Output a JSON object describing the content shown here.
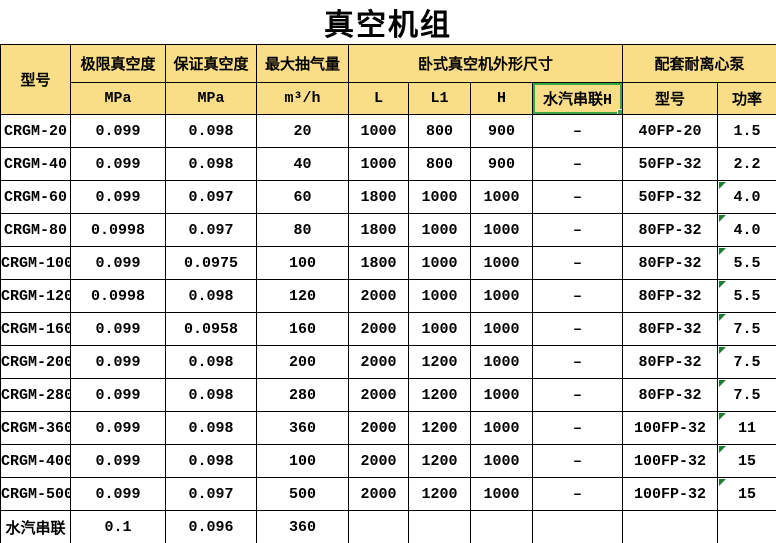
{
  "title": "真空机组",
  "colors": {
    "header_bg": "#FADD87",
    "selection_green": "#3DA447",
    "triangle_green": "#1E7D34",
    "grid_line": "#000000"
  },
  "header": {
    "model": "型号",
    "ultimate_vacuum": "极限真空度",
    "guaranteed_vacuum": "保证真空度",
    "max_pumping": "最大抽气量",
    "dimensions_group": "卧式真空机外形尺寸",
    "pump_group": "配套耐离心泵",
    "unit_mpa_1": "MPa",
    "unit_mpa_2": "MPa",
    "unit_m3h": "m³/h",
    "dim_l": "L",
    "dim_l1": "L1",
    "dim_h": "H",
    "dim_series_h": "水汽串联H",
    "pump_model": "型号",
    "pump_power": "功率"
  },
  "selected_header_cell": "水汽串联H",
  "rows": [
    {
      "model": "CRGM-20",
      "ultimate": "0.099",
      "guaranteed": "0.098",
      "capacity": "20",
      "L": "1000",
      "L1": "800",
      "H": "900",
      "series_h": "–",
      "pump": "40FP-20",
      "power": "1.5",
      "flag": false
    },
    {
      "model": "CRGM-40",
      "ultimate": "0.099",
      "guaranteed": "0.098",
      "capacity": "40",
      "L": "1000",
      "L1": "800",
      "H": "900",
      "series_h": "–",
      "pump": "50FP-32",
      "power": "2.2",
      "flag": false
    },
    {
      "model": "CRGM-60",
      "ultimate": "0.099",
      "guaranteed": "0.097",
      "capacity": "60",
      "L": "1800",
      "L1": "1000",
      "H": "1000",
      "series_h": "–",
      "pump": "50FP-32",
      "power": "4.0",
      "flag": true
    },
    {
      "model": "CRGM-80",
      "ultimate": "0.0998",
      "guaranteed": "0.097",
      "capacity": "80",
      "L": "1800",
      "L1": "1000",
      "H": "1000",
      "series_h": "–",
      "pump": "80FP-32",
      "power": "4.0",
      "flag": true
    },
    {
      "model": "CRGM-100",
      "ultimate": "0.099",
      "guaranteed": "0.0975",
      "capacity": "100",
      "L": "1800",
      "L1": "1000",
      "H": "1000",
      "series_h": "–",
      "pump": "80FP-32",
      "power": "5.5",
      "flag": true
    },
    {
      "model": "CRGM-120",
      "ultimate": "0.0998",
      "guaranteed": "0.098",
      "capacity": "120",
      "L": "2000",
      "L1": "1000",
      "H": "1000",
      "series_h": "–",
      "pump": "80FP-32",
      "power": "5.5",
      "flag": true
    },
    {
      "model": "CRGM-160",
      "ultimate": "0.099",
      "guaranteed": "0.0958",
      "capacity": "160",
      "L": "2000",
      "L1": "1000",
      "H": "1000",
      "series_h": "–",
      "pump": "80FP-32",
      "power": "7.5",
      "flag": true
    },
    {
      "model": "CRGM-200",
      "ultimate": "0.099",
      "guaranteed": "0.098",
      "capacity": "200",
      "L": "2000",
      "L1": "1200",
      "H": "1000",
      "series_h": "–",
      "pump": "80FP-32",
      "power": "7.5",
      "flag": true
    },
    {
      "model": "CRGM-280",
      "ultimate": "0.099",
      "guaranteed": "0.098",
      "capacity": "280",
      "L": "2000",
      "L1": "1200",
      "H": "1000",
      "series_h": "–",
      "pump": "80FP-32",
      "power": "7.5",
      "flag": true
    },
    {
      "model": "CRGM-360",
      "ultimate": "0.099",
      "guaranteed": "0.098",
      "capacity": "360",
      "L": "2000",
      "L1": "1200",
      "H": "1000",
      "series_h": "–",
      "pump": "100FP-32",
      "power": "11",
      "flag": true
    },
    {
      "model": "CRGM-400",
      "ultimate": "0.099",
      "guaranteed": "0.098",
      "capacity": "100",
      "L": "2000",
      "L1": "1200",
      "H": "1000",
      "series_h": "–",
      "pump": "100FP-32",
      "power": "15",
      "flag": true
    },
    {
      "model": "CRGM-500",
      "ultimate": "0.099",
      "guaranteed": "0.097",
      "capacity": "500",
      "L": "2000",
      "L1": "1200",
      "H": "1000",
      "series_h": "–",
      "pump": "100FP-32",
      "power": "15",
      "flag": true
    },
    {
      "model": "水汽串联",
      "ultimate": "0.1",
      "guaranteed": "0.096",
      "capacity": "360",
      "L": "",
      "L1": "",
      "H": "",
      "series_h": "",
      "pump": "",
      "power": "",
      "flag": false
    }
  ]
}
